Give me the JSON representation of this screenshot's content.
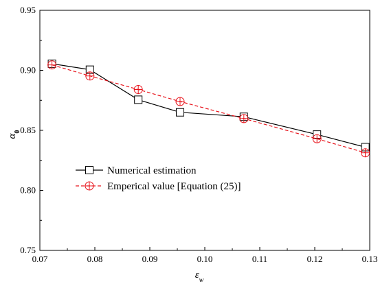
{
  "chart_data": {
    "type": "line",
    "title": "",
    "xlabel": "ε",
    "xlabel_sub": "w",
    "ylabel": "α",
    "ylabel_sub": "0",
    "xlim": [
      0.07,
      0.13
    ],
    "ylim": [
      0.75,
      0.95
    ],
    "xticks": [
      "0.07",
      "0.08",
      "0.09",
      "0.10",
      "0.11",
      "0.12",
      "0.13"
    ],
    "yticks": [
      "0.75",
      "0.80",
      "0.85",
      "0.90",
      "0.95"
    ],
    "grid": false,
    "legend_position": "center-left",
    "series": [
      {
        "name": "Numerical estimation",
        "color": "#000000",
        "line_style": "solid",
        "marker": "square",
        "x": [
          0.0722,
          0.0791,
          0.0879,
          0.0955,
          0.1071,
          0.1204,
          0.1292
        ],
        "y": [
          0.9055,
          0.9005,
          0.8755,
          0.865,
          0.8613,
          0.8465,
          0.836
        ]
      },
      {
        "name": "Emperical value [Equation (25)]",
        "color": "#e8141c",
        "line_style": "dashed",
        "marker": "circle-plus",
        "x": [
          0.0722,
          0.0791,
          0.0879,
          0.0955,
          0.1071,
          0.1204,
          0.1292
        ],
        "y": [
          0.9045,
          0.8953,
          0.884,
          0.874,
          0.8598,
          0.843,
          0.8313
        ]
      }
    ]
  }
}
